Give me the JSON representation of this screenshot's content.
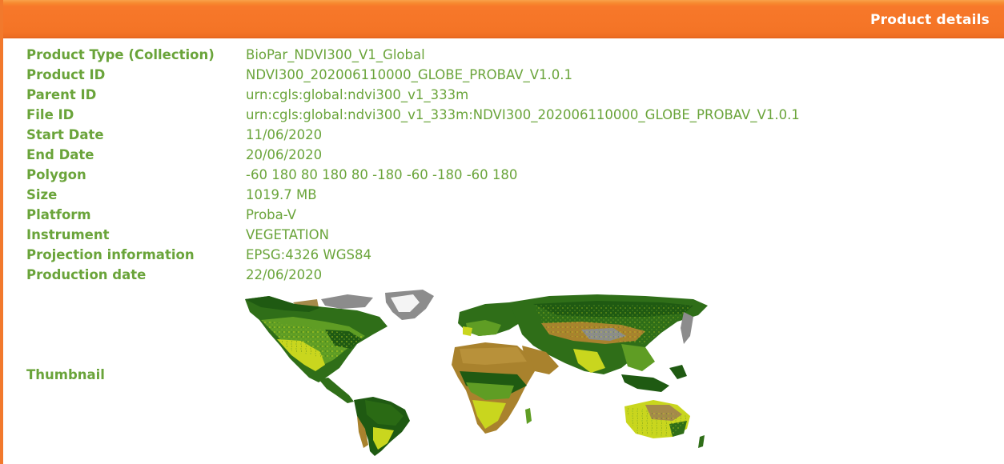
{
  "header": {
    "title": "Product details",
    "color": "#f47426"
  },
  "details": [
    {
      "label": "Product Type (Collection)",
      "value": "BioPar_NDVI300_V1_Global"
    },
    {
      "label": "Product ID",
      "value": "NDVI300_202006110000_GLOBE_PROBAV_V1.0.1"
    },
    {
      "label": "Parent ID",
      "value": "urn:cgls:global:ndvi300_v1_333m"
    },
    {
      "label": "File ID",
      "value": "urn:cgls:global:ndvi300_v1_333m:NDVI300_202006110000_GLOBE_PROBAV_V1.0.1"
    },
    {
      "label": "Start Date",
      "value": "11/06/2020"
    },
    {
      "label": "End Date",
      "value": "20/06/2020"
    },
    {
      "label": "Polygon",
      "value": "-60 180 80 180 80 -180 -60 -180 -60 180"
    },
    {
      "label": "Size",
      "value": "1019.7 MB"
    },
    {
      "label": "Platform",
      "value": "Proba-V"
    },
    {
      "label": "Instrument",
      "value": "VEGETATION"
    },
    {
      "label": "Projection information",
      "value": "EPSG:4326 WGS84"
    },
    {
      "label": "Production date",
      "value": "22/06/2020"
    }
  ],
  "thumbnail": {
    "label": "Thumbnail",
    "image": "ndvi-world-map"
  },
  "colors": {
    "text_green": "#6aa43a",
    "dark_veg": "#1f5a12",
    "mid_veg": "#5f9d24",
    "light_veg": "#c9d61e",
    "desert": "#a9822d",
    "nodata": "#8c8c8c"
  }
}
